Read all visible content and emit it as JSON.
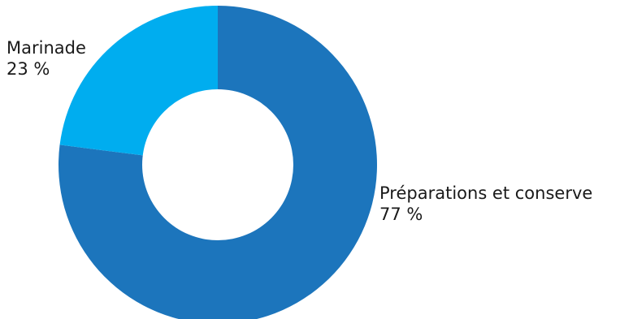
{
  "chart_data": {
    "type": "pie",
    "donut": true,
    "slices": [
      {
        "label": "Préparations et conserve",
        "value": 77,
        "value_text": "77 %",
        "color": "#1c75bc"
      },
      {
        "label": "Marinade",
        "value": 23,
        "value_text": "23 %",
        "color": "#00adef"
      }
    ],
    "start_angle_deg": 0,
    "direction": "clockwise",
    "hole_color": "#ffffff"
  }
}
